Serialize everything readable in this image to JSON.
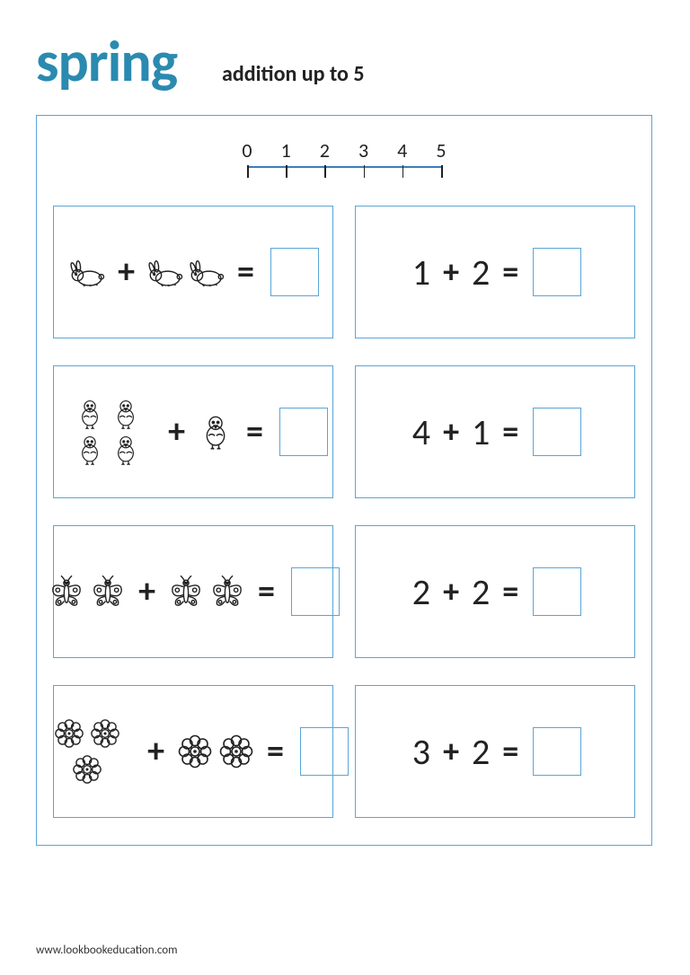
{
  "title": "spring",
  "subtitle": "addition up to 5",
  "numberline": {
    "min": 0,
    "max": 5,
    "ticks": [
      0,
      1,
      2,
      3,
      4,
      5
    ]
  },
  "colors": {
    "accent": "#2a8ab0",
    "border": "#5aa5d6",
    "text": "#222222",
    "background": "#ffffff"
  },
  "problems": [
    {
      "type": "picture",
      "animal": "rabbit",
      "a": 1,
      "b": 2,
      "answer": ""
    },
    {
      "type": "number",
      "a": 1,
      "b": 2,
      "answer": ""
    },
    {
      "type": "picture",
      "animal": "chick",
      "a": 4,
      "b": 1,
      "answer": ""
    },
    {
      "type": "number",
      "a": 4,
      "b": 1,
      "answer": ""
    },
    {
      "type": "picture",
      "animal": "butterfly",
      "a": 2,
      "b": 2,
      "answer": ""
    },
    {
      "type": "number",
      "a": 2,
      "b": 2,
      "answer": ""
    },
    {
      "type": "picture",
      "animal": "flower",
      "a": 3,
      "b": 2,
      "answer": ""
    },
    {
      "type": "number",
      "a": 3,
      "b": 2,
      "answer": ""
    }
  ],
  "footer": "www.lookbookeducation.com"
}
